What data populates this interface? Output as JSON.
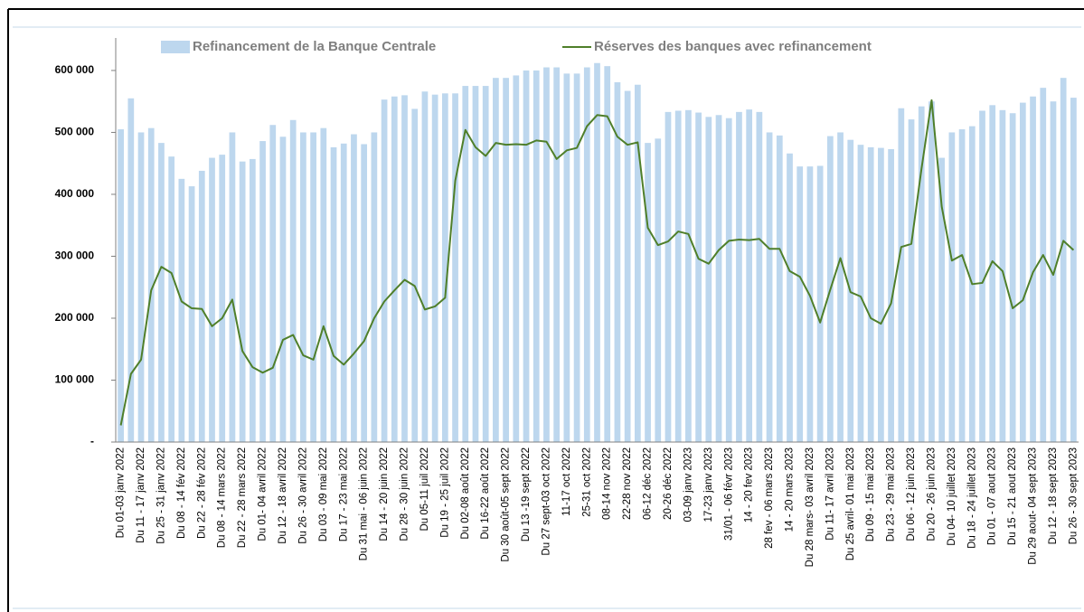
{
  "chart_data": {
    "type": "bar-line",
    "categories": [
      "Du 01-03 janv 2022",
      null,
      "Du 11 - 17 janv 2022",
      null,
      "Du 25 - 31 janv 2022",
      null,
      "Du 08 - 14 fév 2022",
      null,
      "Du 22 - 28 fév 2022",
      null,
      "Du 08 - 14 mars 2022",
      null,
      "Du 22 - 28 mars 2022",
      null,
      "Du 01- 04 avril 2022",
      null,
      "Du 12 - 18 avril 2022",
      null,
      "Du 26 - 30 avril 2022",
      null,
      "Du 03 - 09 mai 2022",
      null,
      "Du 17 - 23 mai 2022",
      null,
      "Du 31 mai - 06 juin 2022",
      null,
      "Du 14 - 20 juin 2022",
      null,
      "Du 28 - 30 juin 2022",
      null,
      "Du 05-11 juil 2022",
      null,
      "Du 19 - 25 juil     2022",
      null,
      "Du 02-08 août 2022",
      null,
      "Du 16-22 août 2022",
      null,
      "Du 30 août-05 sept 2022",
      null,
      "Du 13 -19 sept 2022",
      null,
      "Du 27 sept-03 oct 2022",
      null,
      "11-17 oct 2022",
      null,
      "25-31 oct 2022",
      null,
      "08-14 nov 2022",
      null,
      "22-28 nov 2022",
      null,
      "06-12 déc 2022",
      null,
      "20-26 déc 2022",
      null,
      "03-09 janv 2023",
      null,
      "17-23 janv 2023",
      null,
      "31/01 - 06 févr 2023",
      null,
      "14 - 20 fev 2023",
      null,
      "28 fev - 06 mars 2023",
      null,
      "14 - 20 mars 2023",
      null,
      "Du 28 mars- 03 avril 2023",
      null,
      "Du 11- 17 avril 2023",
      null,
      "Du 25 avril- 01 mai 2023",
      null,
      "Du 09 - 15 mai 2023",
      null,
      "Du 23 - 29 mai 2023",
      null,
      "Du 06 - 12 juin 2023",
      null,
      "Du 20 - 26 juin 2023",
      null,
      "Du 04- 10 juillet 2023",
      null,
      "Du 18 - 24 juillet 2023",
      null,
      "Du 01 - 07 aout 2023",
      null,
      "Du 15 - 21 aout 2023",
      null,
      "Du 29 aout- 04 sept 2023",
      null,
      "Du 12 - 18 sept 2023",
      null,
      "Du 26 - 30 sept 2023"
    ],
    "series": [
      {
        "name": "Refinancement de la Banque Centrale",
        "type": "bar",
        "color": "#bdd7ee",
        "values": [
          505000,
          555000,
          500000,
          507000,
          483000,
          461000,
          425000,
          413000,
          438000,
          459000,
          464000,
          500000,
          453000,
          457000,
          486000,
          512000,
          493000,
          520000,
          500000,
          500000,
          507000,
          476000,
          482000,
          497000,
          481000,
          500000,
          553000,
          558000,
          560000,
          538000,
          566000,
          561000,
          563000,
          563000,
          575000,
          575000,
          575000,
          588000,
          588000,
          592000,
          600000,
          600000,
          605000,
          605000,
          595000,
          595000,
          605000,
          612000,
          607000,
          581000,
          567000,
          577000,
          483000,
          490000,
          533000,
          535000,
          536000,
          532000,
          525000,
          528000,
          523000,
          533000,
          537000,
          533000,
          500000,
          495000,
          466000,
          445000,
          445000,
          446000,
          494000,
          500000,
          488000,
          480000,
          476000,
          475000,
          473000,
          539000,
          521000,
          542000,
          550000,
          459000,
          500000,
          505000,
          510000,
          535000,
          544000,
          536000,
          531000,
          548000,
          558000,
          572000,
          550000,
          588000,
          556000
        ]
      },
      {
        "name": "Réserves des banques avec refinancement",
        "type": "line",
        "color": "#4f7f2a",
        "values": [
          27000,
          110000,
          133000,
          245000,
          283000,
          273000,
          227000,
          216000,
          215000,
          187000,
          200000,
          230000,
          147000,
          121000,
          112000,
          120000,
          165000,
          173000,
          140000,
          133000,
          187000,
          139000,
          125000,
          143000,
          163000,
          200000,
          227000,
          245000,
          262000,
          252000,
          214000,
          219000,
          233000,
          422000,
          504000,
          476000,
          462000,
          483000,
          480000,
          481000,
          480000,
          487000,
          485000,
          457000,
          471000,
          475000,
          510000,
          528000,
          526000,
          493000,
          480000,
          484000,
          346000,
          318000,
          324000,
          340000,
          336000,
          296000,
          288000,
          310000,
          325000,
          327000,
          326000,
          328000,
          312000,
          312000,
          276000,
          267000,
          236000,
          193000,
          246000,
          297000,
          242000,
          235000,
          200000,
          191000,
          224000,
          315000,
          320000,
          441000,
          552000,
          380000,
          293000,
          302000,
          255000,
          257000,
          292000,
          276000,
          216000,
          229000,
          274000,
          302000,
          270000,
          325000,
          310000
        ]
      }
    ],
    "ylim": [
      0,
      670000
    ],
    "yticks": [
      {
        "value": 0,
        "label": "-"
      },
      {
        "value": 100000,
        "label": "100 000"
      },
      {
        "value": 200000,
        "label": "200 000"
      },
      {
        "value": 300000,
        "label": "300 000"
      },
      {
        "value": 400000,
        "label": "400 000"
      },
      {
        "value": 500000,
        "label": "500 000"
      },
      {
        "value": 600000,
        "label": "600 000"
      }
    ],
    "grid": false,
    "legend": "top"
  }
}
